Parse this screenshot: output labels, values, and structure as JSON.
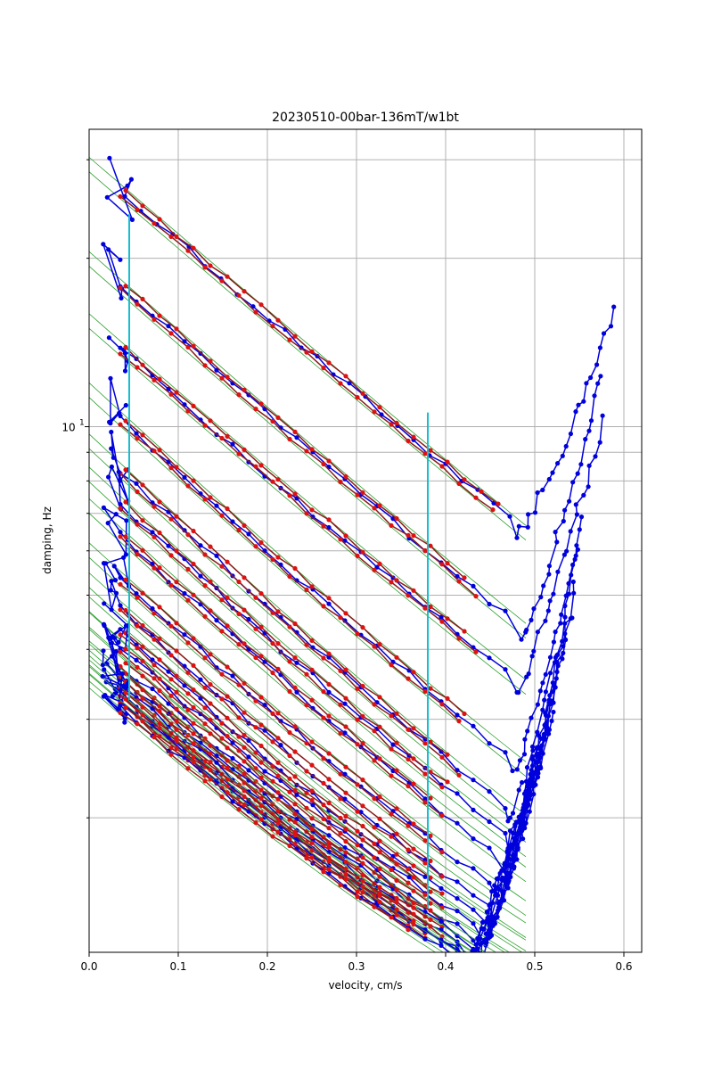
{
  "chart_data": {
    "type": "line",
    "title": "20230510-00bar-136mT/w1bt",
    "xlabel": "velocity, cm/s",
    "ylabel": "damping, Hz",
    "xlim": [
      0.0,
      0.62
    ],
    "ylim": [
      1.15,
      34.0
    ],
    "yscale": "log",
    "grid": true,
    "x_ticks": [
      {
        "value": 0.0,
        "label": "0.0"
      },
      {
        "value": 0.1,
        "label": "0.1"
      },
      {
        "value": 0.2,
        "label": "0.2"
      },
      {
        "value": 0.3,
        "label": "0.3"
      },
      {
        "value": 0.4,
        "label": "0.4"
      },
      {
        "value": 0.5,
        "label": "0.5"
      },
      {
        "value": 0.6,
        "label": "0.6"
      }
    ],
    "y_major_ticks": [
      {
        "value": 10,
        "label": "10",
        "exponent": "1"
      }
    ],
    "y_minor_ticks": [
      2,
      3,
      4,
      5,
      6,
      7,
      8,
      9,
      20,
      30
    ],
    "vertical_lines": [
      {
        "x": 0.045,
        "y_from": 3.25,
        "y_to": 24.0,
        "color": "#17becf"
      },
      {
        "x": 0.38,
        "y_from": 1.38,
        "y_to": 10.6,
        "color": "#17becf"
      }
    ],
    "colors": {
      "raw": "#0000dd",
      "fit": "#dd1111",
      "model": "#2ca02c",
      "markers": "#17becf"
    },
    "sweeps": [
      {
        "a": 0.42,
        "c": 29.0,
        "b": 3.2,
        "vmin": 0.02,
        "vfit": 0.47,
        "vturn": 0.48,
        "vend": 0.59,
        "yend": 16.0
      },
      {
        "a": 0.45,
        "c": 19.5,
        "b": 3.3,
        "vmin": 0.015,
        "vfit": 0.44,
        "vturn": 0.485,
        "vend": 0.575,
        "yend": 12.5
      },
      {
        "a": 0.45,
        "c": 15.0,
        "b": 3.3,
        "vmin": 0.015,
        "vfit": 0.435,
        "vturn": 0.48,
        "vend": 0.575,
        "yend": 10.2
      },
      {
        "a": 0.43,
        "c": 11.2,
        "b": 3.5,
        "vmin": 0.015,
        "vfit": 0.43,
        "vturn": 0.475,
        "vend": 0.555,
        "yend": 7.0
      },
      {
        "a": 0.42,
        "c": 9.0,
        "b": 3.6,
        "vmin": 0.015,
        "vfit": 0.42,
        "vturn": 0.47,
        "vend": 0.55,
        "yend": 6.0
      },
      {
        "a": 0.42,
        "c": 7.8,
        "b": 3.6,
        "vmin": 0.015,
        "vfit": 0.41,
        "vturn": 0.47,
        "vend": 0.545,
        "yend": 5.2
      },
      {
        "a": 0.42,
        "c": 6.8,
        "b": 3.6,
        "vmin": 0.015,
        "vfit": 0.4,
        "vturn": 0.465,
        "vend": 0.54,
        "yend": 4.6
      },
      {
        "a": 0.42,
        "c": 5.6,
        "b": 3.6,
        "vmin": 0.015,
        "vfit": 0.4,
        "vturn": 0.46,
        "vend": 0.53,
        "yend": 4.0
      },
      {
        "a": 0.42,
        "c": 4.9,
        "b": 3.6,
        "vmin": 0.015,
        "vfit": 0.4,
        "vturn": 0.455,
        "vend": 0.525,
        "yend": 3.6
      },
      {
        "a": 0.42,
        "c": 4.4,
        "b": 3.6,
        "vmin": 0.015,
        "vfit": 0.4,
        "vturn": 0.45,
        "vend": 0.52,
        "yend": 3.3
      },
      {
        "a": 0.42,
        "c": 4.1,
        "b": 3.6,
        "vmin": 0.015,
        "vfit": 0.4,
        "vturn": 0.445,
        "vend": 0.52,
        "yend": 3.1
      },
      {
        "a": 0.42,
        "c": 3.8,
        "b": 3.6,
        "vmin": 0.015,
        "vfit": 0.4,
        "vturn": 0.44,
        "vend": 0.515,
        "yend": 2.9
      },
      {
        "a": 0.42,
        "c": 3.6,
        "b": 3.6,
        "vmin": 0.015,
        "vfit": 0.4,
        "vturn": 0.435,
        "vend": 0.51,
        "yend": 2.7
      },
      {
        "a": 0.42,
        "c": 3.45,
        "b": 3.6,
        "vmin": 0.015,
        "vfit": 0.4,
        "vturn": 0.43,
        "vend": 0.505,
        "yend": 2.6
      },
      {
        "a": 0.42,
        "c": 3.3,
        "b": 3.6,
        "vmin": 0.015,
        "vfit": 0.39,
        "vturn": 0.425,
        "vend": 0.5,
        "yend": 2.5
      },
      {
        "a": 0.42,
        "c": 3.2,
        "b": 3.6,
        "vmin": 0.015,
        "vfit": 0.38,
        "vturn": 0.42,
        "vend": 0.5,
        "yend": 2.45
      },
      {
        "a": 0.42,
        "c": 3.1,
        "b": 3.6,
        "vmin": 0.015,
        "vfit": 0.37,
        "vturn": 0.42,
        "vend": 0.495,
        "yend": 2.4
      }
    ]
  }
}
